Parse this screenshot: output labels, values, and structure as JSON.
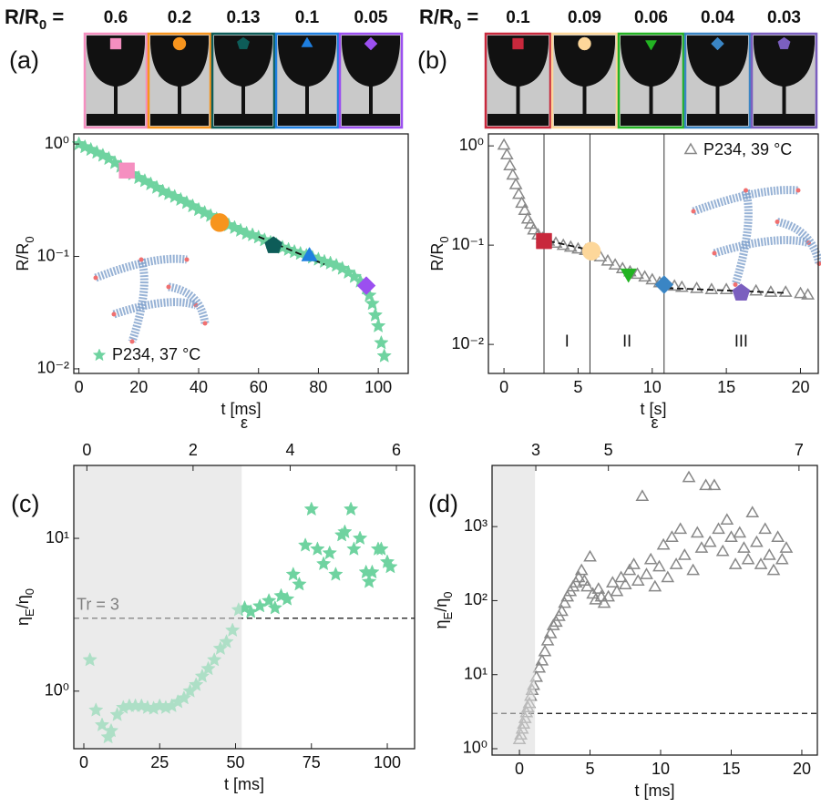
{
  "chart_data": [
    {
      "type": "scatter",
      "panel": "(a)",
      "xlabel": "t [ms]",
      "ylabel": [
        "R/R",
        "0"
      ],
      "yscale": "log",
      "xlim": [
        -1.7,
        110
      ],
      "ylim": [
        0.0091,
        1.23
      ],
      "xticks": [
        0,
        20,
        40,
        60,
        80,
        100
      ],
      "yticks": [
        {
          "value": 0.01,
          "label": "10⁻²"
        },
        {
          "value": 0.1,
          "label": "10⁻¹"
        },
        {
          "value": 1,
          "label": "10⁰"
        }
      ],
      "legend": "lower left",
      "series": [
        {
          "name": "P234, 37 °C",
          "color": "#6fd3a0",
          "marker": "star",
          "x": [
            0,
            2,
            4,
            6,
            8,
            10,
            12,
            14,
            16,
            18,
            20,
            22,
            24,
            26,
            28,
            30,
            32,
            34,
            36,
            38,
            40,
            42,
            44,
            46,
            48,
            50,
            52,
            54,
            56,
            58,
            60,
            62,
            64,
            66,
            68,
            70,
            72,
            74,
            76,
            78,
            80,
            82,
            84,
            86,
            88,
            90,
            92,
            94,
            96,
            97,
            98,
            99,
            100,
            101,
            102
          ],
          "values": [
            1.0,
            0.94,
            0.89,
            0.84,
            0.79,
            0.74,
            0.68,
            0.63,
            0.58,
            0.54,
            0.5,
            0.47,
            0.44,
            0.41,
            0.38,
            0.36,
            0.34,
            0.32,
            0.3,
            0.28,
            0.26,
            0.245,
            0.23,
            0.215,
            0.2,
            0.19,
            0.18,
            0.17,
            0.16,
            0.155,
            0.148,
            0.14,
            0.133,
            0.127,
            0.12,
            0.115,
            0.11,
            0.106,
            0.102,
            0.098,
            0.094,
            0.09,
            0.087,
            0.083,
            0.078,
            0.072,
            0.066,
            0.06,
            0.052,
            0.045,
            0.038,
            0.03,
            0.024,
            0.017,
            0.013
          ]
        }
      ],
      "highlights": {
        "x": [
          16,
          47,
          65,
          77,
          96
        ],
        "values": [
          0.58,
          0.2,
          0.125,
          0.1,
          0.055
        ],
        "colors": [
          "#f58fc0",
          "#f7941d",
          "#0d5c58",
          "#1e7fe0",
          "#9b4ff0"
        ],
        "markers": [
          "square",
          "circle",
          "pentagon",
          "triangle",
          "diamond"
        ]
      },
      "fits": [
        {
          "x": [
            60,
            82
          ],
          "y": [
            0.15,
            0.085
          ]
        }
      ],
      "snapshots": {
        "title": [
          "R/R",
          "0",
          " ="
        ],
        "labels": [
          0.6,
          0.2,
          0.13,
          0.1,
          0.05
        ]
      }
    },
    {
      "type": "scatter",
      "panel": "(b)",
      "xlabel": "t [s]",
      "ylabel": [
        "R/R",
        "0"
      ],
      "yscale": "log",
      "xlim": [
        -1.05,
        21.2
      ],
      "ylim": [
        0.0051,
        1.32
      ],
      "xticks": [
        0,
        5,
        10,
        15,
        20
      ],
      "yticks": [
        {
          "value": 0.01,
          "label": "10⁻²"
        },
        {
          "value": 0.1,
          "label": "10⁻¹"
        },
        {
          "value": 1,
          "label": "10⁰"
        }
      ],
      "legend": "upper right",
      "series": [
        {
          "name": "P234, 39 °C",
          "color": "#888888",
          "marker": "triangle-open",
          "x": [
            0,
            0.2,
            0.4,
            0.6,
            0.8,
            1.0,
            1.2,
            1.4,
            1.6,
            1.8,
            2.0,
            2.3,
            2.6,
            3,
            3.5,
            4,
            4.5,
            5,
            5.5,
            6,
            6.5,
            7,
            7.5,
            8,
            8.5,
            9,
            9.5,
            10,
            10.5,
            11,
            11.5,
            12,
            13,
            14,
            15,
            16,
            17,
            18,
            19,
            20,
            20.5
          ],
          "values": [
            1.0,
            0.8,
            0.62,
            0.5,
            0.4,
            0.32,
            0.26,
            0.22,
            0.18,
            0.16,
            0.14,
            0.125,
            0.115,
            0.108,
            0.103,
            0.098,
            0.094,
            0.09,
            0.087,
            0.083,
            0.075,
            0.068,
            0.062,
            0.057,
            0.053,
            0.05,
            0.047,
            0.044,
            0.041,
            0.039,
            0.038,
            0.037,
            0.036,
            0.035,
            0.035,
            0.034,
            0.034,
            0.033,
            0.033,
            0.032,
            0.031
          ]
        }
      ],
      "highlights": {
        "x": [
          2.7,
          5.9,
          8.4,
          10.8,
          16
        ],
        "values": [
          0.11,
          0.087,
          0.052,
          0.04,
          0.033
        ],
        "colors": [
          "#c8283c",
          "#fdd79a",
          "#22b322",
          "#3a85c4",
          "#7b5fbf"
        ],
        "markers": [
          "square",
          "circle",
          "triangle-down",
          "diamond",
          "pentagon"
        ]
      },
      "fits": [
        {
          "x": [
            3,
            6.5
          ],
          "y": [
            0.11,
            0.085
          ]
        },
        {
          "x": [
            11,
            19
          ],
          "y": [
            0.037,
            0.033
          ]
        }
      ],
      "vlines": [
        2.7,
        5.8,
        10.8
      ],
      "regions": [
        "I",
        "II",
        "III"
      ],
      "snapshots": {
        "title": [
          "R/R",
          "0",
          " ="
        ],
        "labels": [
          0.1,
          0.09,
          0.06,
          0.04,
          0.03
        ]
      }
    },
    {
      "type": "scatter",
      "panel": "(c)",
      "xlabel": "t [ms]",
      "ylabel": [
        "η",
        "E",
        "/η",
        "0"
      ],
      "yscale": "log",
      "xlim": [
        -3.3,
        109
      ],
      "ylim": [
        0.42,
        30
      ],
      "xticks": [
        0,
        25,
        50,
        75,
        100
      ],
      "yticks": [
        {
          "value": 1,
          "label": "10⁰"
        },
        {
          "value": 10,
          "label": "10¹"
        }
      ],
      "x2label": "ε",
      "x2ticks": [
        0,
        2,
        4,
        6
      ],
      "x2tick_at": [
        1,
        36,
        68,
        103
      ],
      "shade_until": 52,
      "hline": 3,
      "hline_label": "Tr = 3",
      "series": [
        {
          "color": "#6fd3a0",
          "marker": "star",
          "x": [
            2,
            4,
            6,
            8,
            9,
            11,
            13,
            15,
            17,
            19,
            21,
            23,
            25,
            27,
            29,
            31,
            33,
            35,
            37,
            39,
            41,
            43,
            45,
            47,
            49,
            51,
            53,
            55,
            58,
            61,
            63,
            65,
            67,
            69,
            71,
            73,
            75,
            77,
            79,
            81,
            83,
            85,
            86,
            88,
            89,
            91,
            93,
            94,
            95,
            97,
            98,
            100,
            101
          ],
          "values": [
            1.6,
            0.75,
            0.6,
            0.5,
            0.55,
            0.7,
            0.78,
            0.8,
            0.8,
            0.8,
            0.78,
            0.77,
            0.8,
            0.78,
            0.8,
            0.85,
            0.9,
            1.0,
            1.1,
            1.25,
            1.4,
            1.6,
            1.9,
            2.1,
            2.5,
            3.4,
            3.5,
            3.3,
            3.6,
            3.9,
            3.5,
            4.2,
            4.0,
            5.8,
            5.0,
            9.0,
            15.5,
            8.5,
            6.8,
            8.0,
            5.8,
            10.5,
            11.0,
            15.5,
            8.5,
            10.0,
            6.0,
            5.2,
            6.0,
            8.5,
            8.5,
            7.0,
            6.5
          ]
        }
      ]
    },
    {
      "type": "scatter",
      "panel": "(d)",
      "xlabel": "t [ms]",
      "ylabel": [
        "η",
        "E",
        "/η",
        "0"
      ],
      "yscale": "log",
      "xlim": [
        -1.94,
        21.1
      ],
      "ylim": [
        0.82,
        6700
      ],
      "xticks": [
        0,
        5,
        10,
        15,
        20
      ],
      "yticks": [
        {
          "value": 1,
          "label": "10⁰"
        },
        {
          "value": 10,
          "label": "10¹"
        },
        {
          "value": 100,
          "label": "10²"
        },
        {
          "value": 1000,
          "label": "10³"
        }
      ],
      "x2label": "ε",
      "x2ticks": [
        3,
        5,
        7
      ],
      "x2tick_at": [
        1.16,
        6.3,
        19.8
      ],
      "shade_until": 1.1,
      "hline": 3,
      "series": [
        {
          "color": "#888888",
          "marker": "triangle-open",
          "x": [
            0,
            0.1,
            0.2,
            0.3,
            0.4,
            0.5,
            0.6,
            0.7,
            0.8,
            0.9,
            1.0,
            1.2,
            1.4,
            1.6,
            1.8,
            2.0,
            2.2,
            2.4,
            2.6,
            2.8,
            3.0,
            3.2,
            3.4,
            3.6,
            3.8,
            4.0,
            4.2,
            4.4,
            4.6,
            4.8,
            5.0,
            5.2,
            5.4,
            5.6,
            5.8,
            6.0,
            6.3,
            6.6,
            6.9,
            7.2,
            7.5,
            7.8,
            8.1,
            8.4,
            8.7,
            9.0,
            9.3,
            9.6,
            9.9,
            10.2,
            10.5,
            10.8,
            11.1,
            11.4,
            11.7,
            12.0,
            12.3,
            12.6,
            12.9,
            13.2,
            13.5,
            13.8,
            14.1,
            14.4,
            14.7,
            15.0,
            15.3,
            15.6,
            15.9,
            16.2,
            16.5,
            16.8,
            17.1,
            17.4,
            17.7,
            18.0,
            18.3,
            18.6,
            18.9
          ],
          "values": [
            1.3,
            1.5,
            1.8,
            2.1,
            2.5,
            3,
            3.5,
            4,
            5,
            6,
            7,
            9,
            12,
            15,
            20,
            28,
            35,
            45,
            50,
            60,
            70,
            90,
            110,
            130,
            150,
            170,
            200,
            250,
            180,
            150,
            380,
            120,
            100,
            140,
            110,
            90,
            110,
            170,
            130,
            200,
            160,
            250,
            300,
            180,
            2500,
            220,
            350,
            150,
            280,
            550,
            200,
            700,
            300,
            900,
            400,
            4500,
            250,
            800,
            500,
            3500,
            600,
            3500,
            900,
            450,
            1200,
            700,
            300,
            800,
            500,
            350,
            1500,
            600,
            300,
            900,
            400,
            250,
            700,
            350,
            500
          ]
        }
      ]
    }
  ]
}
